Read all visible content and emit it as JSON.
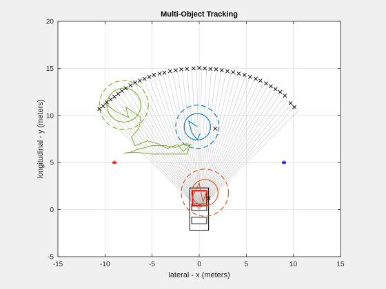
{
  "chart_data": {
    "type": "scatter",
    "title": "Multi-Object Tracking",
    "xlabel": "lateral - x (meters)",
    "ylabel": "longitudinal - y (meters)",
    "xlim": [
      -15,
      15
    ],
    "ylim": [
      -5,
      20
    ],
    "xticks": [
      "-15",
      "-10",
      "-5",
      "0",
      "5",
      "10",
      "15"
    ],
    "yticks": [
      "-5",
      "0",
      "5",
      "10",
      "15",
      "20"
    ],
    "grid": true,
    "colors": {
      "background": "#f0f0f0",
      "axes": "#ffffff",
      "grid": "#e0e0e0",
      "sensor_rays": "#c8c8c8",
      "detections": "#000000",
      "blue_track": "#0072bd",
      "red_track": "#d95319",
      "green_track": "#77ac30",
      "left_marker": "#e00000",
      "right_marker": "#0000c8",
      "vehicle": "#000000",
      "vehicle_highlight": "#ff0000"
    },
    "sensor_origin": [
      0,
      0
    ],
    "sensor_range": 15,
    "fov_deg": [
      -45,
      45
    ],
    "ray_count": 46,
    "detections": [
      [
        -10.6,
        10.7
      ],
      [
        -10.2,
        11.0
      ],
      [
        -9.8,
        11.4
      ],
      [
        -9.4,
        11.7
      ],
      [
        -9.0,
        12.0
      ],
      [
        -8.6,
        12.3
      ],
      [
        -8.2,
        12.6
      ],
      [
        -7.8,
        12.9
      ],
      [
        -7.3,
        13.2
      ],
      [
        -6.8,
        13.5
      ],
      [
        -6.3,
        13.7
      ],
      [
        -5.8,
        13.9
      ],
      [
        -5.3,
        14.1
      ],
      [
        -4.8,
        14.3
      ],
      [
        -4.2,
        14.45
      ],
      [
        -3.7,
        14.55
      ],
      [
        -3.1,
        14.7
      ],
      [
        -2.5,
        14.8
      ],
      [
        -1.9,
        14.9
      ],
      [
        -1.3,
        14.95
      ],
      [
        -0.6,
        15.0
      ],
      [
        0.0,
        15.05
      ],
      [
        0.6,
        15.0
      ],
      [
        1.2,
        14.95
      ],
      [
        1.8,
        14.9
      ],
      [
        2.4,
        14.8
      ],
      [
        3.0,
        14.7
      ],
      [
        3.6,
        14.6
      ],
      [
        4.2,
        14.45
      ],
      [
        4.8,
        14.3
      ],
      [
        5.4,
        14.1
      ],
      [
        6.0,
        13.9
      ],
      [
        6.5,
        13.7
      ],
      [
        7.1,
        13.4
      ],
      [
        7.6,
        13.1
      ],
      [
        8.1,
        12.8
      ],
      [
        8.6,
        12.5
      ],
      [
        9.1,
        12.1
      ],
      [
        9.7,
        11.3
      ],
      [
        10.1,
        10.9
      ],
      [
        1.7,
        8.6
      ],
      [
        1.0,
        1.2
      ]
    ],
    "tracks": [
      {
        "color_key": "blue_track",
        "center": [
          -0.2,
          8.8
        ],
        "inner_radius": 1.4,
        "outer_radius": 2.3,
        "path": [
          [
            -0.2,
            8.8
          ],
          [
            -1.1,
            9.4
          ],
          [
            -0.8,
            8.2
          ],
          [
            -0.2,
            7.4
          ],
          [
            0.1,
            8.1
          ]
        ]
      },
      {
        "color_key": "red_track",
        "center": [
          0.6,
          1.8
        ],
        "inner_radius": 1.4,
        "outer_radius": 2.5,
        "path": [
          [
            -0.6,
            1.6
          ],
          [
            0.0,
            2.8
          ],
          [
            0.4,
            0.8
          ],
          [
            0.8,
            2.0
          ],
          [
            0.6,
            1.2
          ]
        ]
      },
      {
        "color_key": "green_track",
        "center": [
          -8.0,
          11.1
        ],
        "inner_radius": 1.8,
        "outer_radius": 2.6,
        "path": [
          [
            -10.2,
            11.4
          ],
          [
            -8.8,
            10.4
          ],
          [
            -7.5,
            9.8
          ],
          [
            -7.8,
            10.9
          ],
          [
            -6.2,
            9.8
          ],
          [
            -6.4,
            8.6
          ],
          [
            -7.2,
            7.7
          ],
          [
            -6.8,
            6.8
          ],
          [
            -5.5,
            7.3
          ],
          [
            -4.4,
            7.0
          ],
          [
            -3.4,
            6.5
          ],
          [
            -2.3,
            6.9
          ],
          [
            -1.7,
            6.2
          ],
          [
            -0.9,
            6.9
          ],
          [
            -1.4,
            7.0
          ],
          [
            -2.6,
            6.6
          ],
          [
            -3.6,
            6.8
          ],
          [
            -5.0,
            6.8
          ],
          [
            -6.5,
            6.4
          ],
          [
            -7.3,
            6.1
          ],
          [
            -8.0,
            6.0
          ],
          [
            -6.8,
            6.1
          ],
          [
            -5.0,
            5.9
          ],
          [
            -3.4,
            5.9
          ],
          [
            -1.3,
            5.9
          ],
          [
            -1.0,
            6.8
          ],
          [
            -1.9,
            6.9
          ]
        ]
      }
    ],
    "markers": [
      {
        "color_key": "left_marker",
        "x": -9.0,
        "y": 5.0,
        "symbol": "*"
      },
      {
        "color_key": "right_marker",
        "x": 9.0,
        "y": 5.0,
        "symbol": "*"
      }
    ],
    "ego_vehicle": {
      "x_range": [
        -1.0,
        1.0
      ],
      "y_range": [
        -2.2,
        2.3
      ],
      "windows": [
        {
          "x_range": [
            -0.8,
            0.8
          ],
          "y_range": [
            -1.5,
            -0.8
          ]
        },
        {
          "x_range": [
            -0.8,
            0.8
          ],
          "y_range": [
            -0.1,
            0.6
          ]
        }
      ],
      "highlight": {
        "x_range": [
          -0.7,
          0.8
        ],
        "y_range": [
          0.4,
          2.0
        ]
      }
    }
  }
}
